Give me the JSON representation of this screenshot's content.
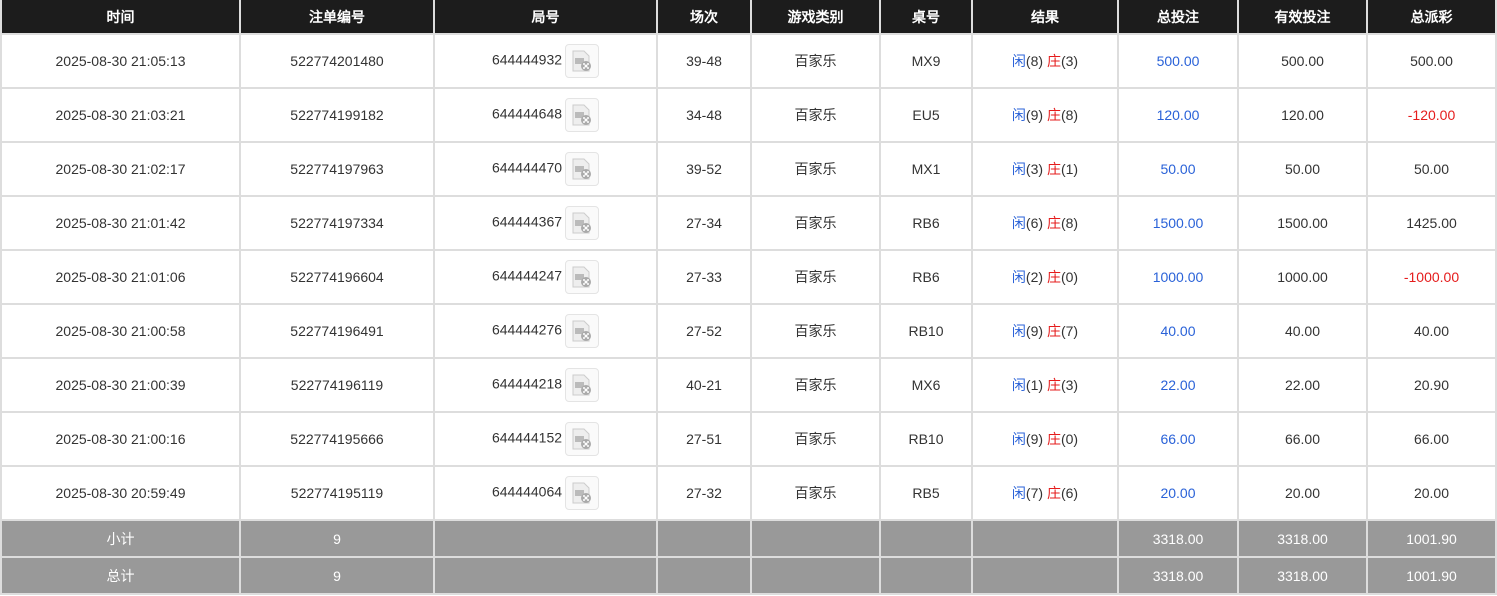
{
  "headers": [
    "时间",
    "注单编号",
    "局号",
    "场次",
    "游戏类别",
    "桌号",
    "结果",
    "总投注",
    "有效投注",
    "总派彩"
  ],
  "result_labels": {
    "player": "闲",
    "banker": "庄"
  },
  "colors": {
    "header_bg": "#1c1c1c",
    "player": "#2a62d8",
    "banker": "#e51c1c",
    "bet": "#2a62d8",
    "negative": "#e51c1c",
    "summary_bg": "#999999"
  },
  "rows": [
    {
      "time": "2025-08-30 21:05:13",
      "order": "522774201480",
      "round": "644444932",
      "shoe": "39-48",
      "game": "百家乐",
      "table": "MX9",
      "player": "(8)",
      "banker": "(3)",
      "bet": "500.00",
      "valid": "500.00",
      "payout": "500.00",
      "neg": false
    },
    {
      "time": "2025-08-30 21:03:21",
      "order": "522774199182",
      "round": "644444648",
      "shoe": "34-48",
      "game": "百家乐",
      "table": "EU5",
      "player": "(9)",
      "banker": "(8)",
      "bet": "120.00",
      "valid": "120.00",
      "payout": "-120.00",
      "neg": true
    },
    {
      "time": "2025-08-30 21:02:17",
      "order": "522774197963",
      "round": "644444470",
      "shoe": "39-52",
      "game": "百家乐",
      "table": "MX1",
      "player": "(3)",
      "banker": "(1)",
      "bet": "50.00",
      "valid": "50.00",
      "payout": "50.00",
      "neg": false
    },
    {
      "time": "2025-08-30 21:01:42",
      "order": "522774197334",
      "round": "644444367",
      "shoe": "27-34",
      "game": "百家乐",
      "table": "RB6",
      "player": "(6)",
      "banker": "(8)",
      "bet": "1500.00",
      "valid": "1500.00",
      "payout": "1425.00",
      "neg": false
    },
    {
      "time": "2025-08-30 21:01:06",
      "order": "522774196604",
      "round": "644444247",
      "shoe": "27-33",
      "game": "百家乐",
      "table": "RB6",
      "player": "(2)",
      "banker": "(0)",
      "bet": "1000.00",
      "valid": "1000.00",
      "payout": "-1000.00",
      "neg": true
    },
    {
      "time": "2025-08-30 21:00:58",
      "order": "522774196491",
      "round": "644444276",
      "shoe": "27-52",
      "game": "百家乐",
      "table": "RB10",
      "player": "(9)",
      "banker": "(7)",
      "bet": "40.00",
      "valid": "40.00",
      "payout": "40.00",
      "neg": false
    },
    {
      "time": "2025-08-30 21:00:39",
      "order": "522774196119",
      "round": "644444218",
      "shoe": "40-21",
      "game": "百家乐",
      "table": "MX6",
      "player": "(1)",
      "banker": "(3)",
      "bet": "22.00",
      "valid": "22.00",
      "payout": "20.90",
      "neg": false
    },
    {
      "time": "2025-08-30 21:00:16",
      "order": "522774195666",
      "round": "644444152",
      "shoe": "27-51",
      "game": "百家乐",
      "table": "RB10",
      "player": "(9)",
      "banker": "(0)",
      "bet": "66.00",
      "valid": "66.00",
      "payout": "66.00",
      "neg": false
    },
    {
      "time": "2025-08-30 20:59:49",
      "order": "522774195119",
      "round": "644444064",
      "shoe": "27-32",
      "game": "百家乐",
      "table": "RB5",
      "player": "(7)",
      "banker": "(6)",
      "bet": "20.00",
      "valid": "20.00",
      "payout": "20.00",
      "neg": false
    }
  ],
  "summary": [
    {
      "label": "小计",
      "count": "9",
      "bet": "3318.00",
      "valid": "3318.00",
      "payout": "1001.90"
    },
    {
      "label": "总计",
      "count": "9",
      "bet": "3318.00",
      "valid": "3318.00",
      "payout": "1001.90"
    }
  ]
}
